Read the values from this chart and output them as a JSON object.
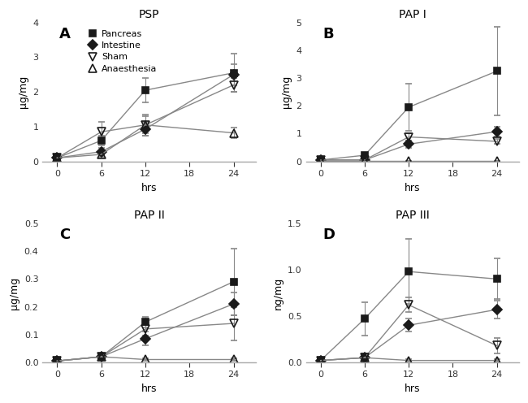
{
  "x": [
    0,
    6,
    12,
    24
  ],
  "panels": [
    {
      "label": "A",
      "title": "PSP",
      "ylabel": "μg/mg",
      "ylim": [
        0,
        4
      ],
      "yticks": [
        0,
        1,
        2,
        3,
        4
      ],
      "series": {
        "Pancreas": {
          "y": [
            0.1,
            0.6,
            2.05,
            2.55
          ],
          "yerr": [
            0.05,
            0.15,
            0.35,
            0.55
          ]
        },
        "Intestine": {
          "y": [
            0.1,
            0.28,
            0.93,
            2.5
          ],
          "yerr": [
            0.04,
            0.1,
            0.2,
            0.3
          ]
        },
        "Sham": {
          "y": [
            0.1,
            0.85,
            1.05,
            2.2
          ],
          "yerr": [
            0.04,
            0.28,
            0.3,
            0.2
          ]
        },
        "Anaesthesia": {
          "y": [
            0.1,
            0.2,
            1.05,
            0.82
          ],
          "yerr": [
            0.04,
            0.07,
            0.25,
            0.15
          ]
        }
      }
    },
    {
      "label": "B",
      "title": "PAP I",
      "ylabel": "μg/mg",
      "ylim": [
        0,
        5
      ],
      "yticks": [
        0,
        1,
        2,
        3,
        4,
        5
      ],
      "series": {
        "Pancreas": {
          "y": [
            0.05,
            0.22,
            1.95,
            3.25
          ],
          "yerr": [
            0.02,
            0.08,
            0.85,
            1.6
          ]
        },
        "Intestine": {
          "y": [
            0.05,
            0.05,
            0.62,
            1.07
          ],
          "yerr": [
            0.02,
            0.03,
            0.12,
            0.18
          ]
        },
        "Sham": {
          "y": [
            0.05,
            0.05,
            0.88,
            0.72
          ],
          "yerr": [
            0.02,
            0.03,
            0.12,
            0.08
          ]
        },
        "Anaesthesia": {
          "y": [
            0.02,
            0.02,
            0.02,
            0.02
          ],
          "yerr": [
            0.01,
            0.01,
            0.01,
            0.01
          ]
        }
      }
    },
    {
      "label": "C",
      "title": "PAP II",
      "ylabel": "μg/mg",
      "ylim": [
        0,
        0.5
      ],
      "yticks": [
        0.0,
        0.1,
        0.2,
        0.3,
        0.4,
        0.5
      ],
      "series": {
        "Pancreas": {
          "y": [
            0.005,
            0.02,
            0.145,
            0.29
          ],
          "yerr": [
            0.002,
            0.01,
            0.02,
            0.12
          ]
        },
        "Intestine": {
          "y": [
            0.005,
            0.02,
            0.085,
            0.21
          ],
          "yerr": [
            0.002,
            0.01,
            0.025,
            0.04
          ]
        },
        "Sham": {
          "y": [
            0.005,
            0.02,
            0.12,
            0.14
          ],
          "yerr": [
            0.002,
            0.01,
            0.025,
            0.06
          ]
        },
        "Anaesthesia": {
          "y": [
            0.005,
            0.02,
            0.01,
            0.01
          ],
          "yerr": [
            0.002,
            0.01,
            0.003,
            0.003
          ]
        }
      }
    },
    {
      "label": "D",
      "title": "PAP III",
      "ylabel": "ng/mg",
      "ylim": [
        0,
        1.5
      ],
      "yticks": [
        0.0,
        0.5,
        1.0,
        1.5
      ],
      "series": {
        "Pancreas": {
          "y": [
            0.02,
            0.47,
            0.98,
            0.9
          ],
          "yerr": [
            0.01,
            0.18,
            0.35,
            0.22
          ]
        },
        "Intestine": {
          "y": [
            0.02,
            0.05,
            0.4,
            0.57
          ],
          "yerr": [
            0.01,
            0.03,
            0.07,
            0.1
          ]
        },
        "Sham": {
          "y": [
            0.02,
            0.05,
            0.62,
            0.18
          ],
          "yerr": [
            0.01,
            0.05,
            0.08,
            0.08
          ]
        },
        "Anaesthesia": {
          "y": [
            0.02,
            0.05,
            0.02,
            0.02
          ],
          "yerr": [
            0.01,
            0.03,
            0.01,
            0.01
          ]
        }
      }
    }
  ],
  "series_styles": {
    "Pancreas": {
      "marker": "s",
      "color": "#1a1a1a",
      "fillstyle": "full",
      "markersize": 6
    },
    "Intestine": {
      "marker": "D",
      "color": "#1a1a1a",
      "fillstyle": "full",
      "markersize": 6
    },
    "Sham": {
      "marker": "v",
      "color": "#1a1a1a",
      "fillstyle": "none",
      "markersize": 7
    },
    "Anaesthesia": {
      "marker": "^",
      "color": "#1a1a1a",
      "fillstyle": "none",
      "markersize": 7
    }
  },
  "xticks": [
    0,
    6,
    12,
    18,
    24
  ],
  "xlabel": "hrs",
  "line_color": "#888888",
  "ecolor": "#888888",
  "capsize": 3,
  "linewidth": 1.0,
  "background_color": "#ffffff",
  "legend_panel": 0
}
